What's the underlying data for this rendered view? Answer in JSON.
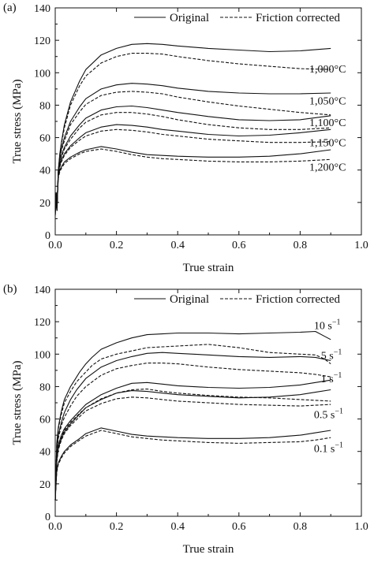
{
  "chart_data": [
    {
      "panel_label": "(a)",
      "type": "line",
      "xlabel": "True strain",
      "ylabel": "True stress (MPa)",
      "xlim": [
        0,
        1.0
      ],
      "ylim": [
        0,
        140
      ],
      "xticks": [
        "0.0",
        "0.2",
        "0.4",
        "0.6",
        "0.8",
        "1.0"
      ],
      "yticks": [
        "0",
        "20",
        "40",
        "60",
        "80",
        "100",
        "120",
        "140"
      ],
      "grid": false,
      "legend_position": "top-right",
      "legend": [
        {
          "label": "Original",
          "style": "solid"
        },
        {
          "label": "Friction corrected",
          "style": "dashed"
        }
      ],
      "series": [
        {
          "group": "1,000°C",
          "style": "solid",
          "x": [
            0,
            0.003,
            0.006,
            0.01,
            0.015,
            0.02,
            0.03,
            0.05,
            0.08,
            0.1,
            0.15,
            0.2,
            0.25,
            0.3,
            0.35,
            0.4,
            0.5,
            0.6,
            0.7,
            0.8,
            0.9
          ],
          "y": [
            12,
            20,
            15,
            40,
            50,
            57,
            68,
            82,
            95,
            102,
            111,
            115,
            117.5,
            118,
            117.5,
            116.5,
            115,
            114,
            113,
            113.5,
            115
          ]
        },
        {
          "group": "1,000°C",
          "style": "dashed",
          "x": [
            0,
            0.003,
            0.006,
            0.01,
            0.015,
            0.02,
            0.03,
            0.05,
            0.08,
            0.1,
            0.15,
            0.2,
            0.25,
            0.3,
            0.35,
            0.4,
            0.5,
            0.6,
            0.7,
            0.8,
            0.9
          ],
          "y": [
            12,
            20,
            15,
            39,
            49,
            56,
            66,
            80,
            92,
            98,
            106,
            110,
            112,
            112,
            111.5,
            110,
            107.5,
            105.5,
            104,
            102.5,
            102
          ]
        },
        {
          "group": "1,050°C",
          "style": "solid",
          "x": [
            0,
            0.003,
            0.006,
            0.01,
            0.015,
            0.02,
            0.03,
            0.05,
            0.08,
            0.1,
            0.15,
            0.2,
            0.25,
            0.3,
            0.35,
            0.4,
            0.5,
            0.6,
            0.7,
            0.8,
            0.9
          ],
          "y": [
            14,
            22,
            17,
            40,
            48,
            53,
            60,
            70,
            79,
            84,
            90,
            92.5,
            93.5,
            93,
            92,
            90.5,
            88.5,
            87.5,
            87,
            87,
            87.5
          ]
        },
        {
          "group": "1,050°C",
          "style": "dashed",
          "x": [
            0,
            0.003,
            0.006,
            0.01,
            0.015,
            0.02,
            0.03,
            0.05,
            0.08,
            0.1,
            0.15,
            0.2,
            0.25,
            0.3,
            0.35,
            0.4,
            0.5,
            0.6,
            0.7,
            0.8,
            0.9
          ],
          "y": [
            14,
            22,
            17,
            39,
            47,
            52,
            58,
            68,
            76,
            80.5,
            86,
            88,
            88.5,
            88,
            87,
            85,
            82,
            79.5,
            77.5,
            75.5,
            74
          ]
        },
        {
          "group": "1,100°C",
          "style": "solid",
          "x": [
            0,
            0.003,
            0.006,
            0.01,
            0.015,
            0.02,
            0.03,
            0.05,
            0.08,
            0.1,
            0.15,
            0.2,
            0.25,
            0.3,
            0.35,
            0.4,
            0.5,
            0.6,
            0.7,
            0.8,
            0.9
          ],
          "y": [
            15,
            24,
            18,
            39,
            45,
            49,
            54,
            61,
            68,
            72,
            77,
            79,
            79.5,
            78.5,
            77,
            75.5,
            73,
            71,
            70.5,
            71,
            73.5
          ]
        },
        {
          "group": "1,100°C",
          "style": "dashed",
          "x": [
            0,
            0.003,
            0.006,
            0.01,
            0.015,
            0.02,
            0.03,
            0.05,
            0.08,
            0.1,
            0.15,
            0.2,
            0.25,
            0.3,
            0.35,
            0.4,
            0.5,
            0.6,
            0.7,
            0.8,
            0.9
          ],
          "y": [
            15,
            24,
            18,
            38,
            44,
            48,
            53,
            59,
            66,
            69.5,
            74,
            75.5,
            75.5,
            74.5,
            73,
            71,
            68,
            66,
            65,
            65,
            66
          ]
        },
        {
          "group": "1,150°C",
          "style": "solid",
          "x": [
            0,
            0.003,
            0.006,
            0.01,
            0.015,
            0.02,
            0.03,
            0.05,
            0.08,
            0.1,
            0.15,
            0.2,
            0.25,
            0.3,
            0.35,
            0.4,
            0.5,
            0.6,
            0.7,
            0.8,
            0.9
          ],
          "y": [
            16,
            25,
            19,
            38,
            43,
            46,
            50,
            55,
            60,
            63,
            66.5,
            68,
            67.5,
            66.5,
            65,
            64,
            62,
            61,
            61.5,
            63,
            65
          ]
        },
        {
          "group": "1,150°C",
          "style": "dashed",
          "x": [
            0,
            0.003,
            0.006,
            0.01,
            0.015,
            0.02,
            0.03,
            0.05,
            0.08,
            0.1,
            0.15,
            0.2,
            0.25,
            0.3,
            0.35,
            0.4,
            0.5,
            0.6,
            0.7,
            0.8,
            0.9
          ],
          "y": [
            16,
            25,
            19,
            37,
            42,
            45,
            49,
            54,
            58.5,
            61,
            64,
            65,
            64.5,
            63.5,
            62,
            61,
            59,
            58,
            57,
            57,
            57.5
          ]
        },
        {
          "group": "1,200°C",
          "style": "solid",
          "x": [
            0,
            0.003,
            0.006,
            0.01,
            0.015,
            0.02,
            0.03,
            0.05,
            0.08,
            0.1,
            0.15,
            0.2,
            0.25,
            0.3,
            0.35,
            0.4,
            0.5,
            0.6,
            0.7,
            0.8,
            0.9
          ],
          "y": [
            17,
            26,
            20,
            36,
            40,
            42,
            45,
            48,
            51,
            52.5,
            54.5,
            53,
            51,
            49.5,
            49,
            48.5,
            48,
            48,
            48.5,
            50,
            52.5
          ]
        },
        {
          "group": "1,200°C",
          "style": "dashed",
          "x": [
            0,
            0.003,
            0.006,
            0.01,
            0.015,
            0.02,
            0.03,
            0.05,
            0.08,
            0.1,
            0.15,
            0.2,
            0.25,
            0.3,
            0.35,
            0.4,
            0.5,
            0.6,
            0.7,
            0.8,
            0.9
          ],
          "y": [
            17,
            26,
            20,
            35,
            39,
            41,
            44,
            47,
            50,
            51.5,
            53,
            51.5,
            49.5,
            48,
            47,
            46.5,
            45.5,
            45,
            45,
            45.5,
            46.5
          ]
        }
      ],
      "annotations": [
        {
          "text": "1,000°C",
          "x": 0.83,
          "y": 102.5
        },
        {
          "text": "1,050°C",
          "x": 0.83,
          "y": 83
        },
        {
          "text": "1,100°C",
          "x": 0.83,
          "y": 69.5
        },
        {
          "text": "1,150°C",
          "x": 0.83,
          "y": 57
        },
        {
          "text": "1,200°C",
          "x": 0.83,
          "y": 42
        }
      ]
    },
    {
      "panel_label": "(b)",
      "type": "line",
      "xlabel": "True strain",
      "ylabel": "True stress (MPa)",
      "xlim": [
        0,
        1.0
      ],
      "ylim": [
        0,
        140
      ],
      "xticks": [
        "0.0",
        "0.2",
        "0.4",
        "0.6",
        "0.8",
        "1.0"
      ],
      "yticks": [
        "0",
        "20",
        "40",
        "60",
        "80",
        "100",
        "120",
        "140"
      ],
      "grid": false,
      "legend_position": "top-right",
      "legend": [
        {
          "label": "Original",
          "style": "solid"
        },
        {
          "label": "Friction corrected",
          "style": "dashed"
        }
      ],
      "series": [
        {
          "group": "10 s⁻¹",
          "style": "solid",
          "x": [
            0,
            0.005,
            0.01,
            0.02,
            0.03,
            0.05,
            0.07,
            0.08,
            0.1,
            0.12,
            0.15,
            0.2,
            0.25,
            0.3,
            0.35,
            0.4,
            0.5,
            0.6,
            0.7,
            0.8,
            0.85,
            0.88,
            0.9
          ],
          "y": [
            10,
            45,
            55,
            65,
            72,
            80,
            86,
            89,
            94,
            98,
            103,
            107,
            110,
            112,
            112.5,
            113,
            113,
            112.5,
            113,
            113.5,
            114,
            111,
            109
          ]
        },
        {
          "group": "10 s⁻¹",
          "style": "dashed",
          "x": [
            0,
            0.005,
            0.01,
            0.02,
            0.03,
            0.05,
            0.07,
            0.08,
            0.1,
            0.12,
            0.15,
            0.2,
            0.25,
            0.3,
            0.35,
            0.4,
            0.5,
            0.6,
            0.7,
            0.8,
            0.85,
            0.88,
            0.9
          ],
          "y": [
            10,
            44,
            54,
            63,
            70,
            77,
            83,
            85,
            89,
            93,
            97,
            100,
            102,
            104,
            104.5,
            105,
            106,
            104,
            101,
            100,
            99.5,
            97,
            94
          ]
        },
        {
          "group": "5 s⁻¹",
          "style": "solid",
          "x": [
            0,
            0.005,
            0.01,
            0.02,
            0.03,
            0.05,
            0.07,
            0.1,
            0.15,
            0.2,
            0.25,
            0.3,
            0.35,
            0.4,
            0.5,
            0.6,
            0.7,
            0.8,
            0.85,
            0.9
          ],
          "y": [
            10,
            40,
            50,
            58,
            64,
            72,
            78,
            85,
            92,
            96,
            98.5,
            100.5,
            101,
            100.5,
            99.5,
            98.5,
            98,
            98.5,
            98,
            96
          ]
        },
        {
          "group": "5 s⁻¹",
          "style": "dashed",
          "x": [
            0,
            0.005,
            0.01,
            0.02,
            0.03,
            0.05,
            0.07,
            0.1,
            0.15,
            0.2,
            0.25,
            0.3,
            0.35,
            0.4,
            0.5,
            0.6,
            0.7,
            0.8,
            0.85,
            0.9
          ],
          "y": [
            10,
            39,
            48,
            56,
            61,
            68,
            74,
            80,
            87,
            91,
            93,
            94.5,
            94.5,
            94,
            92,
            90.5,
            89.5,
            88.5,
            87.5,
            86
          ]
        },
        {
          "group": "1 s⁻¹",
          "style": "solid",
          "x": [
            0,
            0.005,
            0.01,
            0.02,
            0.03,
            0.05,
            0.08,
            0.1,
            0.15,
            0.2,
            0.25,
            0.3,
            0.35,
            0.4,
            0.5,
            0.6,
            0.7,
            0.8,
            0.85,
            0.9
          ],
          "y": [
            10,
            36,
            44,
            50,
            54,
            59,
            65,
            69,
            75,
            79,
            82,
            82.5,
            81.5,
            80.5,
            79.5,
            79,
            79.5,
            81,
            82.5,
            84
          ]
        },
        {
          "group": "1 s⁻¹",
          "style": "dashed",
          "x": [
            0,
            0.005,
            0.01,
            0.02,
            0.03,
            0.05,
            0.08,
            0.1,
            0.15,
            0.2,
            0.25,
            0.3,
            0.35,
            0.4,
            0.5,
            0.6,
            0.7,
            0.8,
            0.85,
            0.9
          ],
          "y": [
            10,
            35,
            43,
            49,
            53,
            58,
            63.5,
            67,
            72.5,
            76,
            78,
            78.5,
            77,
            76,
            74.5,
            73.5,
            73,
            72,
            71.5,
            71
          ]
        },
        {
          "group": "0.5 s⁻¹",
          "style": "solid",
          "x": [
            0,
            0.005,
            0.01,
            0.02,
            0.03,
            0.05,
            0.08,
            0.1,
            0.15,
            0.2,
            0.25,
            0.3,
            0.35,
            0.4,
            0.5,
            0.6,
            0.7,
            0.8,
            0.85,
            0.9
          ],
          "y": [
            10,
            34,
            42,
            48,
            52,
            57,
            63,
            67,
            72,
            76,
            77.5,
            77,
            76,
            75,
            74,
            73,
            73.5,
            75,
            76.5,
            78
          ]
        },
        {
          "group": "0.5 s⁻¹",
          "style": "dashed",
          "x": [
            0,
            0.005,
            0.01,
            0.02,
            0.03,
            0.05,
            0.08,
            0.1,
            0.15,
            0.2,
            0.25,
            0.3,
            0.35,
            0.4,
            0.5,
            0.6,
            0.7,
            0.8,
            0.85,
            0.9
          ],
          "y": [
            10,
            33,
            41,
            47,
            51,
            56,
            61.5,
            65,
            69.5,
            72.5,
            73.5,
            73,
            72,
            71,
            70,
            69,
            68.5,
            68,
            68.5,
            69
          ]
        },
        {
          "group": "0.1 s⁻¹",
          "style": "solid",
          "x": [
            0,
            0.005,
            0.01,
            0.02,
            0.03,
            0.05,
            0.08,
            0.1,
            0.15,
            0.2,
            0.25,
            0.3,
            0.35,
            0.4,
            0.5,
            0.6,
            0.7,
            0.8,
            0.85,
            0.9
          ],
          "y": [
            10,
            28,
            33,
            37,
            40,
            44,
            48,
            51,
            54.5,
            52.5,
            50.5,
            49.5,
            49,
            48.5,
            48,
            48,
            48.5,
            50,
            51.5,
            53
          ]
        },
        {
          "group": "0.1 s⁻¹",
          "style": "dashed",
          "x": [
            0,
            0.005,
            0.01,
            0.02,
            0.03,
            0.05,
            0.08,
            0.1,
            0.15,
            0.2,
            0.25,
            0.3,
            0.35,
            0.4,
            0.5,
            0.6,
            0.7,
            0.8,
            0.85,
            0.9
          ],
          "y": [
            10,
            27,
            32,
            36,
            39,
            43,
            47,
            49.5,
            53,
            51,
            49,
            48,
            47,
            46.5,
            45.5,
            45,
            45.5,
            46,
            47,
            48.5
          ]
        }
      ],
      "annotations": [
        {
          "text": "10 s",
          "sup": "−1",
          "x": 0.845,
          "y": 118
        },
        {
          "text": "5 s",
          "sup": "−1",
          "x": 0.868,
          "y": 99.5
        },
        {
          "text": "1 s",
          "sup": "−1",
          "x": 0.868,
          "y": 85
        },
        {
          "text": "0.5 s",
          "sup": "−1",
          "x": 0.845,
          "y": 63
        },
        {
          "text": "0.1 s",
          "sup": "−1",
          "x": 0.845,
          "y": 42
        }
      ]
    }
  ]
}
